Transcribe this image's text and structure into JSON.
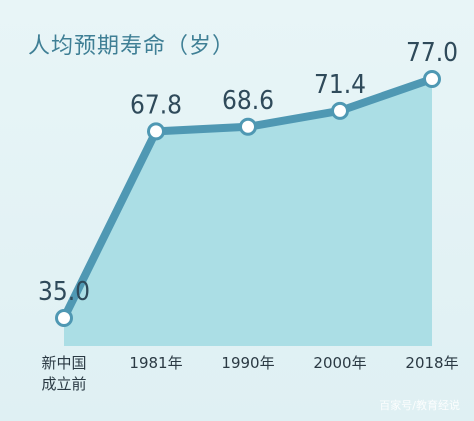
{
  "chart_data": {
    "type": "area",
    "title": "人均预期寿命（岁）",
    "categories": [
      "新中国\n成立前",
      "1981年",
      "1990年",
      "2000年",
      "2018年"
    ],
    "values": [
      35.0,
      67.8,
      68.6,
      71.4,
      77.0
    ],
    "value_labels": [
      "35.0",
      "67.8",
      "68.6",
      "71.4",
      "77.0"
    ],
    "colors": {
      "area_fill": "#a8dce4",
      "line": "#4f98b3",
      "label": "#2f4a5a",
      "title": "#3f7f95",
      "marker_fill": "#ffffff"
    }
  },
  "watermark": "百家号/教育经说"
}
